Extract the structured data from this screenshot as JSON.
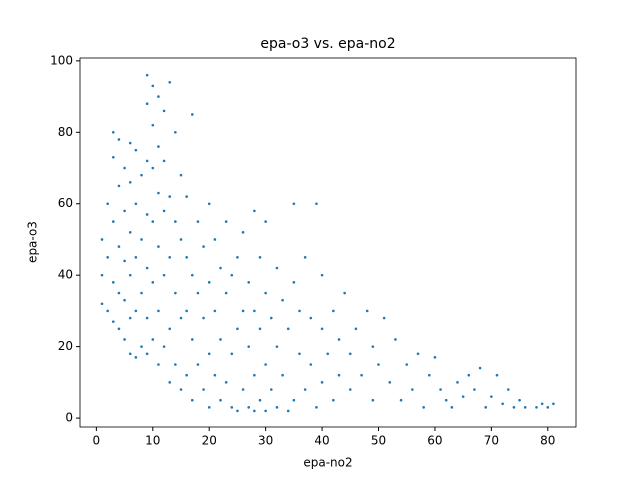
{
  "chart_data": {
    "type": "scatter",
    "title": "epa-o3 vs. epa-no2",
    "x_label": "epa-no2",
    "y_label": "epa-o3",
    "color": "#1f77b4",
    "xlim": [
      -2.9,
      85.0
    ],
    "ylim": [
      -2.5,
      100.8
    ],
    "xticks": [
      0,
      10,
      20,
      30,
      40,
      50,
      60,
      70,
      80
    ],
    "yticks": [
      0,
      20,
      40,
      60,
      80,
      100
    ],
    "x": [
      1,
      1,
      1,
      2,
      2,
      2,
      3,
      3,
      3,
      3,
      3,
      4,
      4,
      4,
      4,
      4,
      5,
      5,
      5,
      5,
      5,
      6,
      6,
      6,
      6,
      6,
      6,
      7,
      7,
      7,
      7,
      7,
      8,
      8,
      8,
      8,
      9,
      9,
      9,
      9,
      9,
      9,
      9,
      10,
      10,
      10,
      10,
      10,
      10,
      11,
      11,
      11,
      11,
      11,
      11,
      12,
      12,
      12,
      12,
      12,
      13,
      13,
      13,
      13,
      13,
      14,
      14,
      14,
      14,
      15,
      15,
      15,
      15,
      16,
      16,
      16,
      16,
      17,
      17,
      17,
      17,
      18,
      18,
      18,
      19,
      19,
      19,
      20,
      20,
      20,
      20,
      21,
      21,
      21,
      22,
      22,
      22,
      23,
      23,
      23,
      24,
      24,
      24,
      25,
      25,
      25,
      26,
      26,
      26,
      27,
      27,
      27,
      28,
      28,
      28,
      28,
      29,
      29,
      29,
      30,
      30,
      30,
      30,
      31,
      31,
      32,
      32,
      32,
      33,
      33,
      34,
      34,
      35,
      35,
      35,
      36,
      36,
      37,
      37,
      38,
      38,
      39,
      39,
      40,
      40,
      40,
      41,
      42,
      42,
      43,
      43,
      44,
      45,
      45,
      46,
      47,
      48,
      49,
      49,
      50,
      51,
      52,
      53,
      54,
      55,
      56,
      57,
      58,
      59,
      60,
      61,
      62,
      63,
      64,
      65,
      66,
      67,
      68,
      69,
      70,
      71,
      72,
      73,
      74,
      75,
      76,
      78,
      79,
      80,
      81
    ],
    "values": [
      32,
      40,
      50,
      30,
      45,
      60,
      27,
      38,
      55,
      73,
      80,
      25,
      35,
      48,
      65,
      78,
      22,
      33,
      44,
      58,
      70,
      18,
      28,
      40,
      52,
      66,
      77,
      17,
      30,
      45,
      60,
      75,
      20,
      35,
      50,
      68,
      18,
      28,
      42,
      57,
      72,
      96,
      88,
      22,
      38,
      55,
      70,
      93,
      82,
      15,
      30,
      48,
      63,
      76,
      90,
      20,
      40,
      58,
      72,
      86,
      10,
      25,
      45,
      62,
      94,
      15,
      35,
      55,
      80,
      8,
      28,
      50,
      68,
      12,
      30,
      45,
      62,
      5,
      22,
      40,
      85,
      15,
      35,
      55,
      8,
      28,
      48,
      3,
      18,
      38,
      60,
      12,
      30,
      50,
      5,
      22,
      42,
      10,
      35,
      55,
      3,
      18,
      40,
      2,
      25,
      45,
      8,
      30,
      52,
      3,
      20,
      38,
      2,
      12,
      30,
      58,
      5,
      25,
      45,
      2,
      15,
      35,
      55,
      8,
      28,
      3,
      20,
      42,
      12,
      33,
      2,
      25,
      5,
      38,
      60,
      18,
      30,
      8,
      45,
      15,
      28,
      3,
      60,
      10,
      25,
      40,
      18,
      5,
      30,
      12,
      22,
      35,
      8,
      18,
      25,
      12,
      30,
      5,
      20,
      15,
      28,
      10,
      22,
      5,
      15,
      8,
      18,
      3,
      12,
      17,
      8,
      5,
      3,
      10,
      6,
      12,
      8,
      14,
      3,
      6,
      12,
      4,
      8,
      3,
      5,
      3,
      3,
      4,
      3,
      4
    ]
  }
}
